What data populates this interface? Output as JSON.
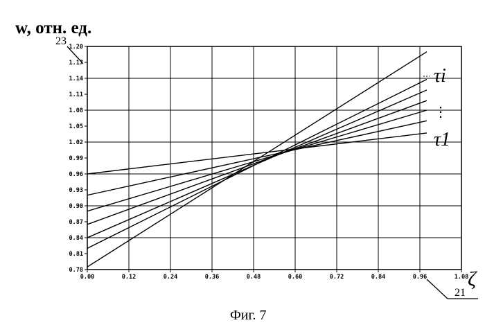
{
  "figure": {
    "ylabel": "w, отн. ед.",
    "xlabel": "ζ",
    "caption": "Фиг. 7",
    "ref_y_axis": "23",
    "ref_x_axis": "21",
    "tau_top": "τi",
    "tau_bottom": "τ1",
    "dots": "⋮"
  },
  "chart_data": {
    "type": "line",
    "xlabel": "ζ",
    "ylabel": "w, отн. ед.",
    "xlim": [
      0,
      1.08
    ],
    "ylim": [
      0.78,
      1.2
    ],
    "x_ticks": [
      "0.00",
      "0.12",
      "0.24",
      "0.36",
      "0.48",
      "0.60",
      "0.72",
      "0.84",
      "0.96",
      "1.08"
    ],
    "y_ticks": [
      "0.78",
      "0.81",
      "0.84",
      "0.87",
      "0.90",
      "0.93",
      "0.96",
      "0.99",
      "1.02",
      "1.05",
      "1.08",
      "1.11",
      "1.14",
      "1.17",
      "1.20"
    ],
    "grid_x": [
      0,
      0.12,
      0.24,
      0.36,
      0.48,
      0.6,
      0.72,
      0.84,
      0.96,
      1.08
    ],
    "grid_y": [
      0.78,
      0.84,
      0.9,
      0.96,
      1.02,
      1.08,
      1.14,
      1.2
    ],
    "grid": true,
    "series": [
      {
        "x": [
          0,
          0.98
        ],
        "y": [
          0.96,
          1.037
        ]
      },
      {
        "x": [
          0,
          0.98
        ],
        "y": [
          0.92,
          1.06
        ]
      },
      {
        "x": [
          0,
          0.98
        ],
        "y": [
          0.89,
          1.08
        ]
      },
      {
        "x": [
          0,
          0.98
        ],
        "y": [
          0.865,
          1.098
        ]
      },
      {
        "x": [
          0,
          0.98
        ],
        "y": [
          0.84,
          1.118
        ]
      },
      {
        "x": [
          0,
          0.98
        ],
        "y": [
          0.82,
          1.138
        ]
      },
      {
        "x": [
          0,
          0.98
        ],
        "y": [
          0.785,
          1.19
        ]
      }
    ]
  }
}
